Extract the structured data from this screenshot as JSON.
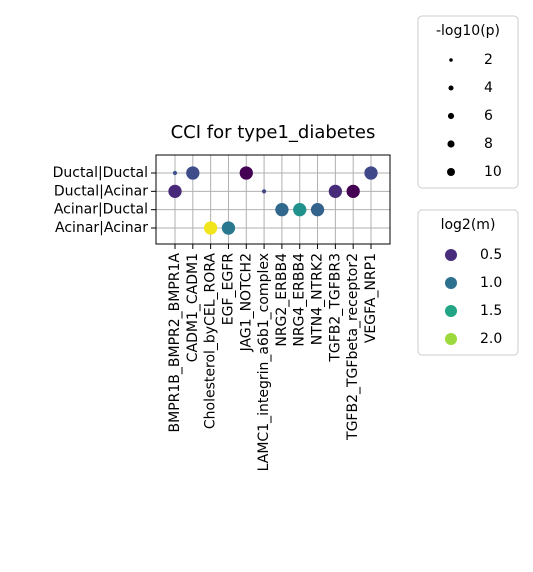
{
  "chart_data": {
    "type": "dotplot",
    "title": "CCI for type1_diabetes",
    "x_categories": [
      "BMPR1B_BMPR2_BMPR1A",
      "CADM1_CADM1",
      "Cholesterol_byCEL_RORA",
      "EGF_EGFR",
      "JAG1_NOTCH2",
      "LAMC1_integrin_a6b1_complex",
      "NRG2_ERBB4",
      "NRG4_ERBB4",
      "NTN4_NTRK2",
      "TGFB2_TGFBR3",
      "TGFB2_TGFbeta_receptor2",
      "VEGFA_NRP1"
    ],
    "y_categories": [
      "Ductal|Ductal",
      "Ductal|Acinar",
      "Acinar|Ductal",
      "Acinar|Acinar"
    ],
    "grid": true,
    "points": [
      {
        "x": "BMPR1B_BMPR2_BMPR1A",
        "y": "Ductal|Ductal",
        "size": 1,
        "color_value": 0.7,
        "color": "#3b528b"
      },
      {
        "x": "BMPR1B_BMPR2_BMPR1A",
        "y": "Ductal|Acinar",
        "size": 10,
        "color_value": 0.4,
        "color": "#482878"
      },
      {
        "x": "CADM1_CADM1",
        "y": "Ductal|Ductal",
        "size": 10,
        "color_value": 0.8,
        "color": "#3e4c8a"
      },
      {
        "x": "Cholesterol_byCEL_RORA",
        "y": "Acinar|Acinar",
        "size": 10,
        "color_value": 2.2,
        "color": "#f1e51d"
      },
      {
        "x": "EGF_EGFR",
        "y": "Acinar|Acinar",
        "size": 10,
        "color_value": 1.1,
        "color": "#2a788e"
      },
      {
        "x": "JAG1_NOTCH2",
        "y": "Ductal|Ductal",
        "size": 10,
        "color_value": 0.2,
        "color": "#440154"
      },
      {
        "x": "LAMC1_integrin_a6b1_complex",
        "y": "Ductal|Acinar",
        "size": 1,
        "color_value": 0.7,
        "color": "#414487"
      },
      {
        "x": "NRG2_ERBB4",
        "y": "Acinar|Ductal",
        "size": 10,
        "color_value": 1.0,
        "color": "#31688e"
      },
      {
        "x": "NRG4_ERBB4",
        "y": "Acinar|Ductal",
        "size": 10,
        "color_value": 1.3,
        "color": "#21918c"
      },
      {
        "x": "NTN4_NTRK2",
        "y": "Acinar|Ductal",
        "size": 10,
        "color_value": 0.9,
        "color": "#33638d"
      },
      {
        "x": "TGFB2_TGFBR3",
        "y": "Ductal|Acinar",
        "size": 10,
        "color_value": 0.4,
        "color": "#472c7a"
      },
      {
        "x": "TGFB2_TGFbeta_receptor2",
        "y": "Ductal|Acinar",
        "size": 10,
        "color_value": 0.2,
        "color": "#440154"
      },
      {
        "x": "VEGFA_NRP1",
        "y": "Ductal|Ductal",
        "size": 10,
        "color_value": 0.75,
        "color": "#3f4889"
      }
    ],
    "size_legend": {
      "title": "-log10(p)",
      "values": [
        2,
        4,
        6,
        8,
        10
      ]
    },
    "color_legend": {
      "title": "log2(m)",
      "values": [
        0.5,
        {
          "value": 1,
          "label": "1.0"
        },
        1.5,
        {
          "value": 2,
          "label": "2.0"
        }
      ],
      "colors": [
        "#472d7b",
        "#2c718e",
        "#21a585",
        "#9bd93c"
      ]
    }
  }
}
